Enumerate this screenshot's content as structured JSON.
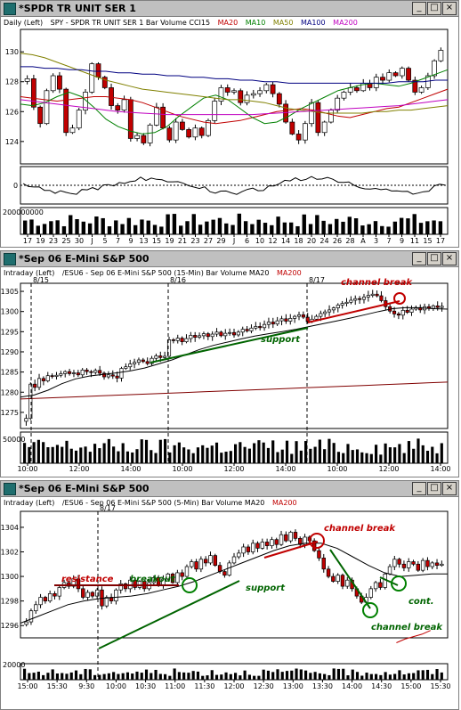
{
  "windows": [
    {
      "title": "*SPDR TR UNIT SER 1",
      "header": [
        {
          "text": "Daily (Left)",
          "color": "#000000"
        },
        {
          "text": "SPY - SPDR TR UNIT SER 1  Bar  Volume  CCI15",
          "color": "#000000"
        },
        {
          "text": "MA20",
          "color": "#c00000"
        },
        {
          "text": "MA10",
          "color": "#008000"
        },
        {
          "text": "MA50",
          "color": "#808000"
        },
        {
          "text": "MA100",
          "color": "#000080"
        },
        {
          "text": "MA200",
          "color": "#c000c0"
        }
      ]
    },
    {
      "title": "*Sep 06  E-Mini S&P 500",
      "header": [
        {
          "text": "Intraday (Left)",
          "color": "#000000"
        },
        {
          "text": "/ESU6 - Sep 06  E-Mini S&P 500 (15-Min)  Bar  Volume  MA20",
          "color": "#000000"
        },
        {
          "text": "MA200",
          "color": "#c00000"
        }
      ]
    },
    {
      "title": "*Sep 06  E-Mini S&P 500",
      "header": [
        {
          "text": "Intraday (Left)",
          "color": "#000000"
        },
        {
          "text": "/ESU6 - Sep 06  E-Mini S&P 500 (5-Min)  Bar  Volume  MA20",
          "color": "#000000"
        },
        {
          "text": "MA200",
          "color": "#c00000"
        }
      ]
    }
  ],
  "window_buttons": [
    "_",
    "□",
    "×"
  ],
  "chart_data": [
    {
      "type": "candlestick",
      "title": "SPY - SPDR TR UNIT SER 1 (Daily)",
      "yticks": [
        124,
        126,
        128,
        130
      ],
      "ylim": [
        122.5,
        131.5
      ],
      "xticks": [
        "17",
        "19",
        "23",
        "25",
        "30",
        "J",
        "5",
        "7",
        "9",
        "13",
        "15",
        "19",
        "21",
        "23",
        "27",
        "29",
        "J",
        "6",
        "10",
        "12",
        "14",
        "18",
        "20",
        "24",
        "26",
        "28",
        "A",
        "3",
        "7",
        "9",
        "11",
        "15",
        "17"
      ],
      "close": [
        128.2,
        126.3,
        125.2,
        127.4,
        128.4,
        127.5,
        124.6,
        124.9,
        126.1,
        127.3,
        129.2,
        128.3,
        127.6,
        126.4,
        126.1,
        126.8,
        124.2,
        124.4,
        123.9,
        125.1,
        126.3,
        124.9,
        124.1,
        125.3,
        124.8,
        124.3,
        124.9,
        124.4,
        125.4,
        126.7,
        127.6,
        127.3,
        127.4,
        126.6,
        127.1,
        127.2,
        127.4,
        127.8,
        127.2,
        126.5,
        125.3,
        124.5,
        124.1,
        125.2,
        126.6,
        124.6,
        125.3,
        126.1,
        126.9,
        127.3,
        127.6,
        127.4,
        127.9,
        127.6,
        128.3,
        128.1,
        128.6,
        128.4,
        128.9,
        128.1,
        127.3,
        127.6,
        128.4,
        129.4,
        130.1
      ],
      "ma_lines": [
        {
          "name": "MA20",
          "color": "#c00000",
          "values": [
            127.0,
            126.9,
            126.8,
            126.7,
            126.8,
            126.9,
            127.0,
            127.0,
            126.9,
            126.8,
            126.6,
            126.3,
            126.0,
            125.7,
            125.5,
            125.3,
            125.2,
            125.3,
            125.4,
            125.6,
            125.8,
            126.0,
            126.1,
            126.2,
            126.1,
            125.9,
            125.7,
            125.6,
            125.8,
            126.0,
            126.2,
            126.3,
            126.6,
            126.9,
            127.2,
            127.5
          ]
        },
        {
          "name": "MA10",
          "color": "#008000",
          "values": [
            126.5,
            126.4,
            126.6,
            127.0,
            127.3,
            127.0,
            126.3,
            125.5,
            125.0,
            124.7,
            124.5,
            124.6,
            125.0,
            125.7,
            126.3,
            126.9,
            127.1,
            126.8,
            126.2,
            125.6,
            125.2,
            125.3,
            125.7,
            126.2,
            126.6,
            127.0,
            127.4,
            127.6,
            127.8,
            127.9,
            127.8,
            127.7,
            127.9,
            128.2,
            128.5,
            128.8
          ]
        },
        {
          "name": "MA50",
          "color": "#808000",
          "values": [
            129.9,
            129.8,
            129.6,
            129.3,
            129.0,
            128.7,
            128.4,
            128.1,
            127.9,
            127.7,
            127.5,
            127.4,
            127.3,
            127.2,
            127.1,
            127.0,
            126.9,
            126.8,
            126.8,
            126.7,
            126.6,
            126.4,
            126.2,
            126.1,
            126.0,
            125.9,
            125.9,
            125.9,
            125.9,
            126.0,
            126.0,
            126.1,
            126.1,
            126.2,
            126.3,
            126.4
          ]
        },
        {
          "name": "MA100",
          "color": "#000080",
          "values": [
            129.0,
            129.0,
            128.9,
            128.9,
            128.8,
            128.8,
            128.7,
            128.7,
            128.6,
            128.6,
            128.5,
            128.5,
            128.4,
            128.4,
            128.3,
            128.3,
            128.2,
            128.2,
            128.1,
            128.1,
            128.0,
            128.0,
            127.9,
            127.9,
            127.9,
            127.9,
            127.9,
            127.9,
            127.9,
            127.9,
            127.9,
            128.0,
            128.0,
            128.0,
            128.1,
            128.1
          ]
        },
        {
          "name": "MA200",
          "color": "#c000c0",
          "values": [
            126.8,
            126.7,
            126.6,
            126.5,
            126.4,
            126.3,
            126.2,
            126.1,
            126.0,
            125.95,
            125.9,
            125.85,
            125.8,
            125.8,
            125.8,
            125.8,
            125.8,
            125.8,
            125.8,
            125.8,
            125.85,
            125.9,
            125.95,
            126.0,
            126.05,
            126.1,
            126.15,
            126.2,
            126.25,
            126.3,
            126.35,
            126.4,
            126.5,
            126.6,
            126.7,
            126.8
          ]
        }
      ],
      "cci_label": "0",
      "volume_label": "200000000"
    },
    {
      "type": "candlestick",
      "title": "/ESU6 - Sep 06 E-Mini S&P 500 (15-Min)",
      "yticks": [
        1275,
        1280,
        1285,
        1290,
        1295,
        1300,
        1305
      ],
      "ylim": [
        1271,
        1307
      ],
      "xticks": [
        "10:00",
        "12:00",
        "14:00",
        "10:00",
        "12:00",
        "14:00",
        "10:00",
        "12:00",
        "14:00"
      ],
      "day_labels": [
        "8/15",
        "8/16",
        "8/17"
      ],
      "annotations": [
        {
          "text": "support",
          "color": "#006400"
        },
        {
          "text": "channel break",
          "color": "#c00000"
        }
      ],
      "close": [
        1273.5,
        1282.0,
        1281.2,
        1283.4,
        1282.8,
        1284.1,
        1283.9,
        1284.2,
        1284.6,
        1285.1,
        1284.6,
        1284.8,
        1284.3,
        1285.5,
        1285.1,
        1284.9,
        1285.4,
        1284.7,
        1283.8,
        1284.3,
        1284.0,
        1283.5,
        1285.9,
        1286.3,
        1287.0,
        1287.4,
        1288.0,
        1287.6,
        1287.1,
        1288.4,
        1289.0,
        1288.6,
        1288.9,
        1293.0,
        1292.8,
        1293.4,
        1292.5,
        1293.3,
        1294.1,
        1293.6,
        1294.0,
        1294.5,
        1293.8,
        1294.4,
        1294.9,
        1294.0,
        1294.6,
        1294.8,
        1294.2,
        1294.9,
        1295.6,
        1295.2,
        1295.9,
        1296.3,
        1296.0,
        1296.8,
        1297.4,
        1296.9,
        1297.7,
        1298.2,
        1297.6,
        1298.3,
        1298.8,
        1299.2,
        1298.6,
        1297.5,
        1298.1,
        1298.8,
        1299.5,
        1299.9,
        1300.4,
        1300.9,
        1301.6,
        1302.0,
        1302.3,
        1302.8,
        1303.2,
        1303.0,
        1303.6,
        1304.0,
        1304.3,
        1303.9,
        1302.7,
        1301.2,
        1300.1,
        1299.4,
        1299.1,
        1300.3,
        1299.8,
        1300.6,
        1301.0,
        1300.4,
        1301.2,
        1300.8,
        1301.4,
        1301.0,
        1301.3
      ],
      "ma_lines": [
        {
          "name": "MA20",
          "color": "#000000",
          "values": [
            1278.8,
            1279.3,
            1280.5,
            1282.1,
            1283.3,
            1284.0,
            1284.4,
            1284.8,
            1285.3,
            1286.0,
            1287.0,
            1288.0,
            1289.3,
            1290.6,
            1291.6,
            1292.4,
            1293.2,
            1293.9,
            1294.5,
            1295.0,
            1295.6,
            1296.3,
            1297.0,
            1297.7,
            1298.4,
            1299.2,
            1300.0,
            1300.7,
            1301.0,
            1300.9,
            1300.7,
            1300.6
          ]
        },
        {
          "name": "MA200",
          "color": "#800000",
          "values": [
            1278.3,
            1278.5,
            1278.7,
            1278.9,
            1279.1,
            1279.3,
            1279.5,
            1279.7,
            1279.9,
            1280.1,
            1280.3,
            1280.5,
            1280.7,
            1280.9,
            1281.1,
            1281.3,
            1281.5,
            1281.7,
            1281.9,
            1282.1,
            1282.3,
            1282.5
          ]
        }
      ],
      "volume_label": "50000"
    },
    {
      "type": "candlestick",
      "title": "/ESU6 - Sep 06 E-Mini S&P 500 (5-Min)",
      "yticks": [
        1296,
        1298,
        1300,
        1302,
        1304
      ],
      "ylim": [
        1295,
        1305.3
      ],
      "xticks": [
        "15:00",
        "15:30",
        "9:30",
        "10:00",
        "10:30",
        "11:00",
        "11:30",
        "12:00",
        "12:30",
        "13:00",
        "13:30",
        "14:00",
        "14:30",
        "15:00",
        "15:30"
      ],
      "day_labels": [
        "8/17"
      ],
      "annotations": [
        {
          "text": "resistance",
          "color": "#c00000"
        },
        {
          "text": "breakout",
          "color": "#006400"
        },
        {
          "text": "support",
          "color": "#006400"
        },
        {
          "text": "channel break",
          "color": "#c00000"
        },
        {
          "text": "channel break",
          "color": "#006400"
        },
        {
          "text": "cont.",
          "color": "#006400"
        }
      ],
      "close": [
        1296.3,
        1297.2,
        1297.7,
        1298.3,
        1298.0,
        1298.6,
        1298.4,
        1299.1,
        1299.5,
        1299.2,
        1299.8,
        1299.0,
        1298.3,
        1298.7,
        1298.4,
        1298.9,
        1297.6,
        1298.3,
        1298.0,
        1298.9,
        1299.4,
        1299.0,
        1299.7,
        1299.1,
        1299.6,
        1299.0,
        1299.5,
        1299.9,
        1299.3,
        1299.8,
        1300.2,
        1299.5,
        1300.3,
        1300.0,
        1300.8,
        1301.2,
        1300.6,
        1301.4,
        1301.1,
        1301.7,
        1300.9,
        1300.4,
        1300.1,
        1301.1,
        1301.6,
        1301.9,
        1302.4,
        1302.0,
        1302.7,
        1302.3,
        1302.8,
        1302.5,
        1303.0,
        1302.6,
        1303.4,
        1302.9,
        1303.6,
        1303.1,
        1302.6,
        1303.2,
        1302.9,
        1302.1,
        1301.5,
        1300.6,
        1300.0,
        1299.6,
        1300.1,
        1299.2,
        1299.7,
        1299.0,
        1298.4,
        1297.9,
        1298.3,
        1299.0,
        1299.5,
        1299.1,
        1300.2,
        1300.8,
        1301.4,
        1301.0,
        1300.7,
        1301.2,
        1301.0,
        1300.5,
        1301.3,
        1300.8,
        1301.1,
        1300.9,
        1301.0
      ],
      "ma_lines": [
        {
          "name": "MA20",
          "color": "#000000",
          "values": [
            1296.2,
            1296.7,
            1297.2,
            1297.7,
            1298.0,
            1298.2,
            1298.3,
            1298.4,
            1298.6,
            1298.9,
            1299.2,
            1299.6,
            1300.1,
            1300.6,
            1301.1,
            1301.6,
            1302.1,
            1302.5,
            1302.7,
            1302.7,
            1302.3,
            1301.6,
            1300.9,
            1300.3,
            1300.0,
            1300.1,
            1300.2,
            1300.2
          ]
        },
        {
          "name": "MA200",
          "color": "#c00000",
          "values": [
            1294.6,
            1294.9,
            1295.1,
            1295.3,
            1295.6
          ]
        }
      ],
      "volume_label": "20000"
    }
  ]
}
